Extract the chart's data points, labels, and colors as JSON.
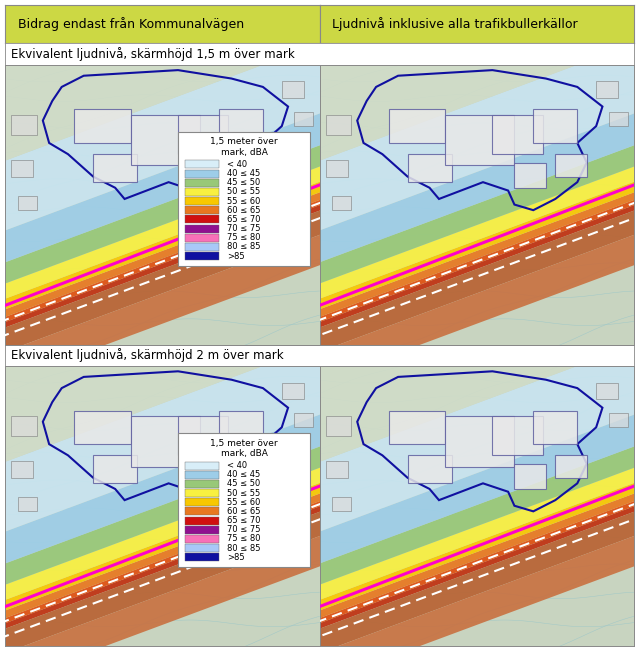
{
  "header_left": "Bidrag endast från Kommunalvägen",
  "header_right": "Ljudnivå inklusive alla trafikbullerkällor",
  "row1_label": "Ekvivalent ljudnivå, skärmhöjd 1,5 m över mark",
  "row2_label": "Ekvivalent ljudnivå, skärmhöjd 2 m över mark",
  "legend_title": "1,5 meter över\nmark, dBA",
  "legend_entries": [
    {
      "label": "< 40",
      "color": "#d8eef8"
    },
    {
      "label": "40 ≤ 45",
      "color": "#9dcde8"
    },
    {
      "label": "45 ≤ 50",
      "color": "#98c878"
    },
    {
      "label": "50 ≤ 55",
      "color": "#f8f040"
    },
    {
      "label": "55 ≤ 60",
      "color": "#f8c800"
    },
    {
      "label": "60 ≤ 65",
      "color": "#e87820"
    },
    {
      "label": "65 ≤ 70",
      "color": "#d01010"
    },
    {
      "label": "70 ≤ 75",
      "color": "#901090"
    },
    {
      "label": "75 ≤ 80",
      "color": "#f870b8"
    },
    {
      "label": "80 ≤ 85",
      "color": "#a8c8f8"
    },
    {
      "label": ">85",
      "color": "#1010a0"
    }
  ],
  "header_bg_color": "#ccd844",
  "header_text_color": "#000000",
  "row_label_bg_color": "#ffffff",
  "border_color": "#888888",
  "fig_bg_color": "#ffffff",
  "terrain_bg": "#c8d8c8",
  "terrain_light": "#d8e8d0",
  "contour_color": "#88b8b8",
  "building_fill": "#e0e0e0",
  "building_edge": "#404080",
  "header_fontsize": 9.0,
  "row_label_fontsize": 8.5,
  "legend_title_fontsize": 6.5,
  "legend_label_fontsize": 6.0
}
